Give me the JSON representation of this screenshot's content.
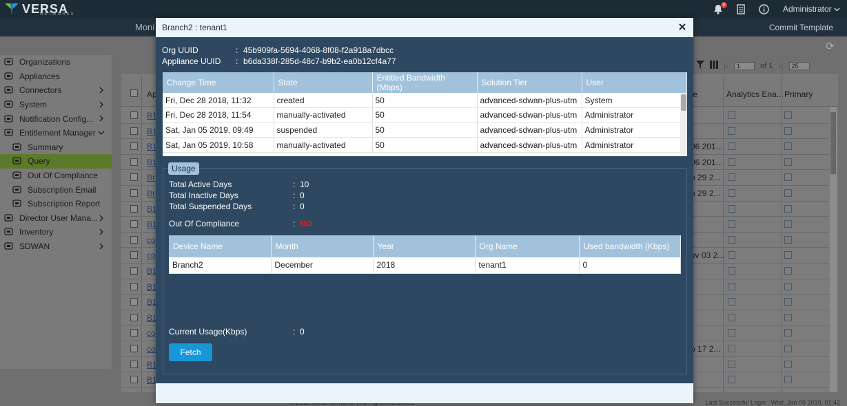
{
  "app": {
    "brand": "VERSA",
    "brand_sub": "NETWORKS",
    "notification_count": "0",
    "user_menu": "Administrator",
    "nav_partial": "Moni",
    "commit_template": "Commit Template"
  },
  "sidebar": {
    "items": [
      {
        "label": "Organizations",
        "icon": "organizations-icon",
        "chevron": false,
        "sub": false
      },
      {
        "label": "Appliances",
        "icon": "appliances-icon",
        "chevron": false,
        "sub": false
      },
      {
        "label": "Connectors",
        "icon": "connectors-icon",
        "chevron": true,
        "sub": false
      },
      {
        "label": "System",
        "icon": "system-icon",
        "chevron": true,
        "sub": false
      },
      {
        "label": "Notification Config...",
        "icon": "notification-config-icon",
        "chevron": true,
        "sub": false
      },
      {
        "label": "Entitlement Manager",
        "icon": "entitlement-icon",
        "chevron": true,
        "sub": false
      },
      {
        "label": "Summary",
        "icon": "summary-icon",
        "chevron": false,
        "sub": true
      },
      {
        "label": "Query",
        "icon": "query-icon",
        "chevron": false,
        "sub": true,
        "selected": true
      },
      {
        "label": "Out Of Compliance",
        "icon": "compliance-icon",
        "chevron": false,
        "sub": true
      },
      {
        "label": "Subscription Email",
        "icon": "email-icon",
        "chevron": false,
        "sub": true
      },
      {
        "label": "Subscription Report",
        "icon": "report-icon",
        "chevron": false,
        "sub": true
      },
      {
        "label": "Director User Mana...",
        "icon": "users-icon",
        "chevron": true,
        "sub": false
      },
      {
        "label": "Inventory",
        "icon": "inventory-icon",
        "chevron": true,
        "sub": false
      },
      {
        "label": "SDWAN",
        "icon": "sdwan-icon",
        "chevron": true,
        "sub": false
      }
    ]
  },
  "background_grid": {
    "headers": {
      "first": "Ap",
      "date": "te",
      "analytics": "Analytics Ena...",
      "primary": "Primary"
    },
    "pager": {
      "page": "1",
      "of_label": "of 1",
      "page_size": "25"
    },
    "rows": [
      {
        "link": "B1",
        "date": ""
      },
      {
        "link": "B1",
        "date": ""
      },
      {
        "link": "B1",
        "date": "06 201..."
      },
      {
        "link": "B1",
        "date": "06 201..."
      },
      {
        "link": "Br",
        "date": "n 29 2..."
      },
      {
        "link": "Br",
        "date": "n 29 2..."
      },
      {
        "link": "B1",
        "date": ""
      },
      {
        "link": "B1",
        "date": ""
      },
      {
        "link": "co",
        "date": ""
      },
      {
        "link": "co",
        "date": "ov 03 2..."
      },
      {
        "link": "B1",
        "date": ""
      },
      {
        "link": "B1",
        "date": ""
      },
      {
        "link": "B1",
        "date": ""
      },
      {
        "link": "B1",
        "date": ""
      },
      {
        "link": "co",
        "date": ""
      },
      {
        "link": "co",
        "date": "p 17 2..."
      },
      {
        "link": "B1",
        "date": ""
      },
      {
        "link": "B1",
        "date": ""
      }
    ]
  },
  "footer": {
    "copyright": "© 2018 Versa Networks | All Rights Reserved",
    "last_login": "Last Successful Login : Wed, Jan 09 2019, 01:42"
  },
  "modal": {
    "title": "Branch2 : tenant1",
    "org_uuid_label": "Org UUID",
    "org_uuid": "45b909fa-5694-4068-8f08-f2a918a7dbcc",
    "appliance_uuid_label": "Appliance UUID",
    "appliance_uuid": "b6da338f-285d-48c7-b9b2-ea0b12cf4a77",
    "history": {
      "headers": [
        "Change Time",
        "State",
        "Entitled Bandwidth (Mbps)",
        "Solution Tier",
        "User"
      ],
      "rows": [
        [
          "Fri, Dec 28 2018, 11:32",
          "created",
          "50",
          "advanced-sdwan-plus-utm",
          "System"
        ],
        [
          "Fri, Dec 28 2018, 11:54",
          "manually-activated",
          "50",
          "advanced-sdwan-plus-utm",
          "Administrator"
        ],
        [
          "Sat, Jan 05 2019, 09:49",
          "suspended",
          "50",
          "advanced-sdwan-plus-utm",
          "Administrator"
        ],
        [
          "Sat, Jan 05 2019, 10:58",
          "manually-activated",
          "50",
          "advanced-sdwan-plus-utm",
          "Administrator"
        ]
      ]
    },
    "usage": {
      "legend": "Usage",
      "total_active_label": "Total Active Days",
      "total_active": "10",
      "total_inactive_label": "Total Inactive Days",
      "total_inactive": "0",
      "total_suspended_label": "Total Suspended Days",
      "total_suspended": "0",
      "out_of_compliance_label": "Out Of Compliance",
      "out_of_compliance": "NO",
      "table": {
        "headers": [
          "Device Name",
          "Month",
          "Year",
          "Org Name",
          "Used bandwidth (Kbps)"
        ],
        "rows": [
          [
            "Branch2",
            "December",
            "2018",
            "tenant1",
            "0"
          ]
        ]
      },
      "current_usage_label": "Current Usage(Kbps)",
      "current_usage": "0",
      "fetch_label": "Fetch"
    }
  },
  "colors": {
    "modal_bg": "#2d4860",
    "header_blue": "#a2c2dc",
    "fetch_button": "#1797d8",
    "compliance_no": "#e31e1e"
  }
}
